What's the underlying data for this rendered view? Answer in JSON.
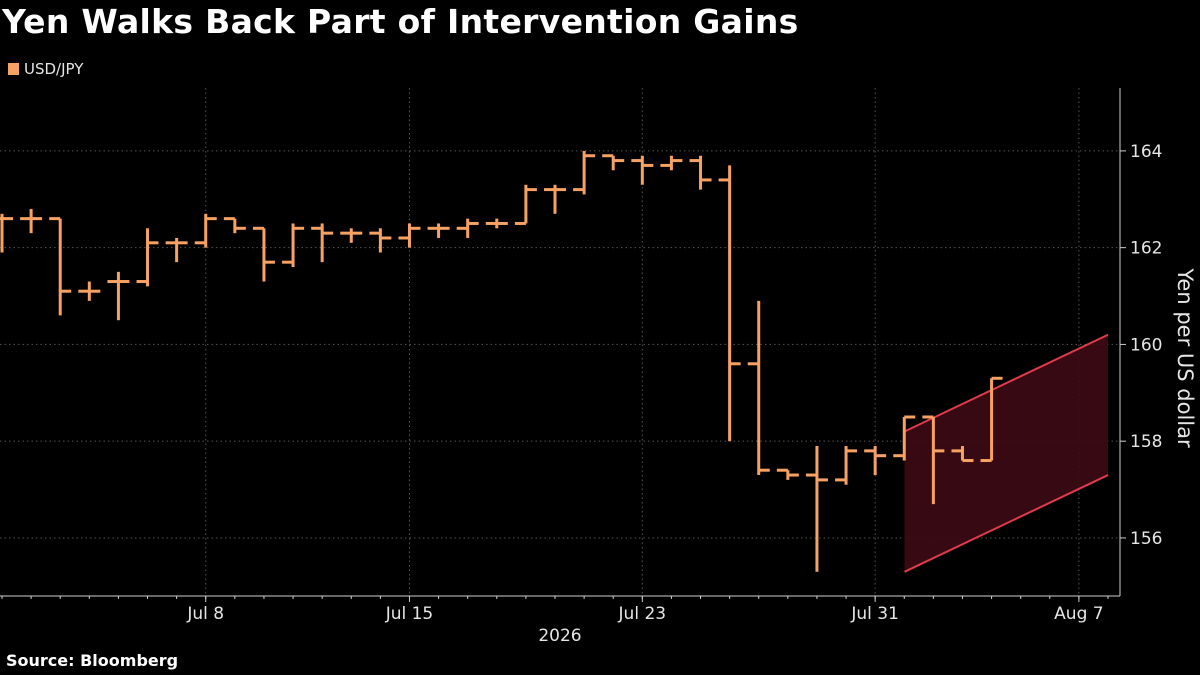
{
  "title": "Yen Walks Back Part of Intervention Gains",
  "source": "Source: Bloomberg",
  "watermark": "",
  "colors": {
    "series": "#f7a263",
    "channel": "#e03b4a",
    "channel_fill": "#3d0a14",
    "grid": "#555555",
    "axis": "#cfcfcf"
  },
  "chart_data": {
    "type": "ohlc",
    "legend": [
      "USD/JPY"
    ],
    "ylabel": "Yen per US dollar",
    "xlabel": "2026",
    "ylim": [
      154.8,
      165.3
    ],
    "yticks": [
      156,
      158,
      160,
      162,
      164
    ],
    "xticks": [
      {
        "label": "Jul 8",
        "x": "2026-07-08"
      },
      {
        "label": "Jul 15",
        "x": "2026-07-15"
      },
      {
        "label": "Jul 23",
        "x": "2026-07-23"
      },
      {
        "label": "Jul 31",
        "x": "2026-07-31"
      },
      {
        "label": "Aug 7",
        "x": "2026-08-07"
      }
    ],
    "xlim": [
      "2026-07-01",
      "2026-08-08"
    ],
    "grid": true,
    "series": [
      {
        "name": "USD/JPY",
        "bars": [
          {
            "date": "2026-07-01",
            "open": 162.6,
            "high": 162.7,
            "low": 161.9,
            "close": 162.6
          },
          {
            "date": "2026-07-02",
            "open": 162.6,
            "high": 162.8,
            "low": 162.3,
            "close": 162.6
          },
          {
            "date": "2026-07-03",
            "open": 162.6,
            "high": 162.6,
            "low": 160.6,
            "close": 161.1
          },
          {
            "date": "2026-07-04",
            "open": 161.1,
            "high": 161.3,
            "low": 160.9,
            "close": 161.1
          },
          {
            "date": "2026-07-05",
            "open": 161.3,
            "high": 161.5,
            "low": 160.5,
            "close": 161.3
          },
          {
            "date": "2026-07-06",
            "open": 161.3,
            "high": 162.4,
            "low": 161.2,
            "close": 162.1
          },
          {
            "date": "2026-07-07",
            "open": 162.1,
            "high": 162.2,
            "low": 161.7,
            "close": 162.1
          },
          {
            "date": "2026-07-08",
            "open": 162.1,
            "high": 162.7,
            "low": 162.0,
            "close": 162.6
          },
          {
            "date": "2026-07-09",
            "open": 162.6,
            "high": 162.6,
            "low": 162.3,
            "close": 162.4
          },
          {
            "date": "2026-07-10",
            "open": 162.4,
            "high": 162.4,
            "low": 161.3,
            "close": 161.7
          },
          {
            "date": "2026-07-11",
            "open": 161.7,
            "high": 162.5,
            "low": 161.6,
            "close": 162.4
          },
          {
            "date": "2026-07-12",
            "open": 162.4,
            "high": 162.5,
            "low": 161.7,
            "close": 162.3
          },
          {
            "date": "2026-07-13",
            "open": 162.3,
            "high": 162.4,
            "low": 162.1,
            "close": 162.3
          },
          {
            "date": "2026-07-14",
            "open": 162.3,
            "high": 162.4,
            "low": 161.9,
            "close": 162.2
          },
          {
            "date": "2026-07-15",
            "open": 162.2,
            "high": 162.5,
            "low": 162.0,
            "close": 162.4
          },
          {
            "date": "2026-07-16",
            "open": 162.4,
            "high": 162.5,
            "low": 162.2,
            "close": 162.4
          },
          {
            "date": "2026-07-17",
            "open": 162.4,
            "high": 162.6,
            "low": 162.2,
            "close": 162.5
          },
          {
            "date": "2026-07-18",
            "open": 162.5,
            "high": 162.6,
            "low": 162.4,
            "close": 162.5
          },
          {
            "date": "2026-07-19",
            "open": 162.5,
            "high": 163.3,
            "low": 162.5,
            "close": 163.2
          },
          {
            "date": "2026-07-20",
            "open": 163.2,
            "high": 163.3,
            "low": 162.7,
            "close": 163.2
          },
          {
            "date": "2026-07-21",
            "open": 163.2,
            "high": 164.0,
            "low": 163.1,
            "close": 163.9
          },
          {
            "date": "2026-07-22",
            "open": 163.9,
            "high": 163.9,
            "low": 163.6,
            "close": 163.8
          },
          {
            "date": "2026-07-23",
            "open": 163.8,
            "high": 163.9,
            "low": 163.3,
            "close": 163.7
          },
          {
            "date": "2026-07-24",
            "open": 163.7,
            "high": 163.9,
            "low": 163.6,
            "close": 163.8
          },
          {
            "date": "2026-07-25",
            "open": 163.8,
            "high": 163.9,
            "low": 163.2,
            "close": 163.4
          },
          {
            "date": "2026-07-26",
            "open": 163.4,
            "high": 163.7,
            "low": 158.0,
            "close": 159.6
          },
          {
            "date": "2026-07-27",
            "open": 159.6,
            "high": 160.9,
            "low": 157.3,
            "close": 157.4
          },
          {
            "date": "2026-07-28",
            "open": 157.4,
            "high": 157.4,
            "low": 157.2,
            "close": 157.3
          },
          {
            "date": "2026-07-29",
            "open": 157.3,
            "high": 157.9,
            "low": 155.3,
            "close": 157.2
          },
          {
            "date": "2026-07-30",
            "open": 157.2,
            "high": 157.9,
            "low": 157.1,
            "close": 157.8
          },
          {
            "date": "2026-07-31",
            "open": 157.8,
            "high": 157.9,
            "low": 157.3,
            "close": 157.7
          },
          {
            "date": "2026-08-01",
            "open": 157.7,
            "high": 158.5,
            "low": 157.6,
            "close": 158.5
          },
          {
            "date": "2026-08-02",
            "open": 158.5,
            "high": 158.5,
            "low": 156.7,
            "close": 157.8
          },
          {
            "date": "2026-08-03",
            "open": 157.8,
            "high": 157.9,
            "low": 157.6,
            "close": 157.6
          },
          {
            "date": "2026-08-04",
            "open": 157.6,
            "high": 159.3,
            "low": 157.6,
            "close": 159.3
          }
        ]
      }
    ],
    "annotations": [
      {
        "type": "rising-channel",
        "upper": [
          158.2,
          160.2
        ],
        "lower": [
          155.3,
          157.3
        ]
      }
    ]
  }
}
